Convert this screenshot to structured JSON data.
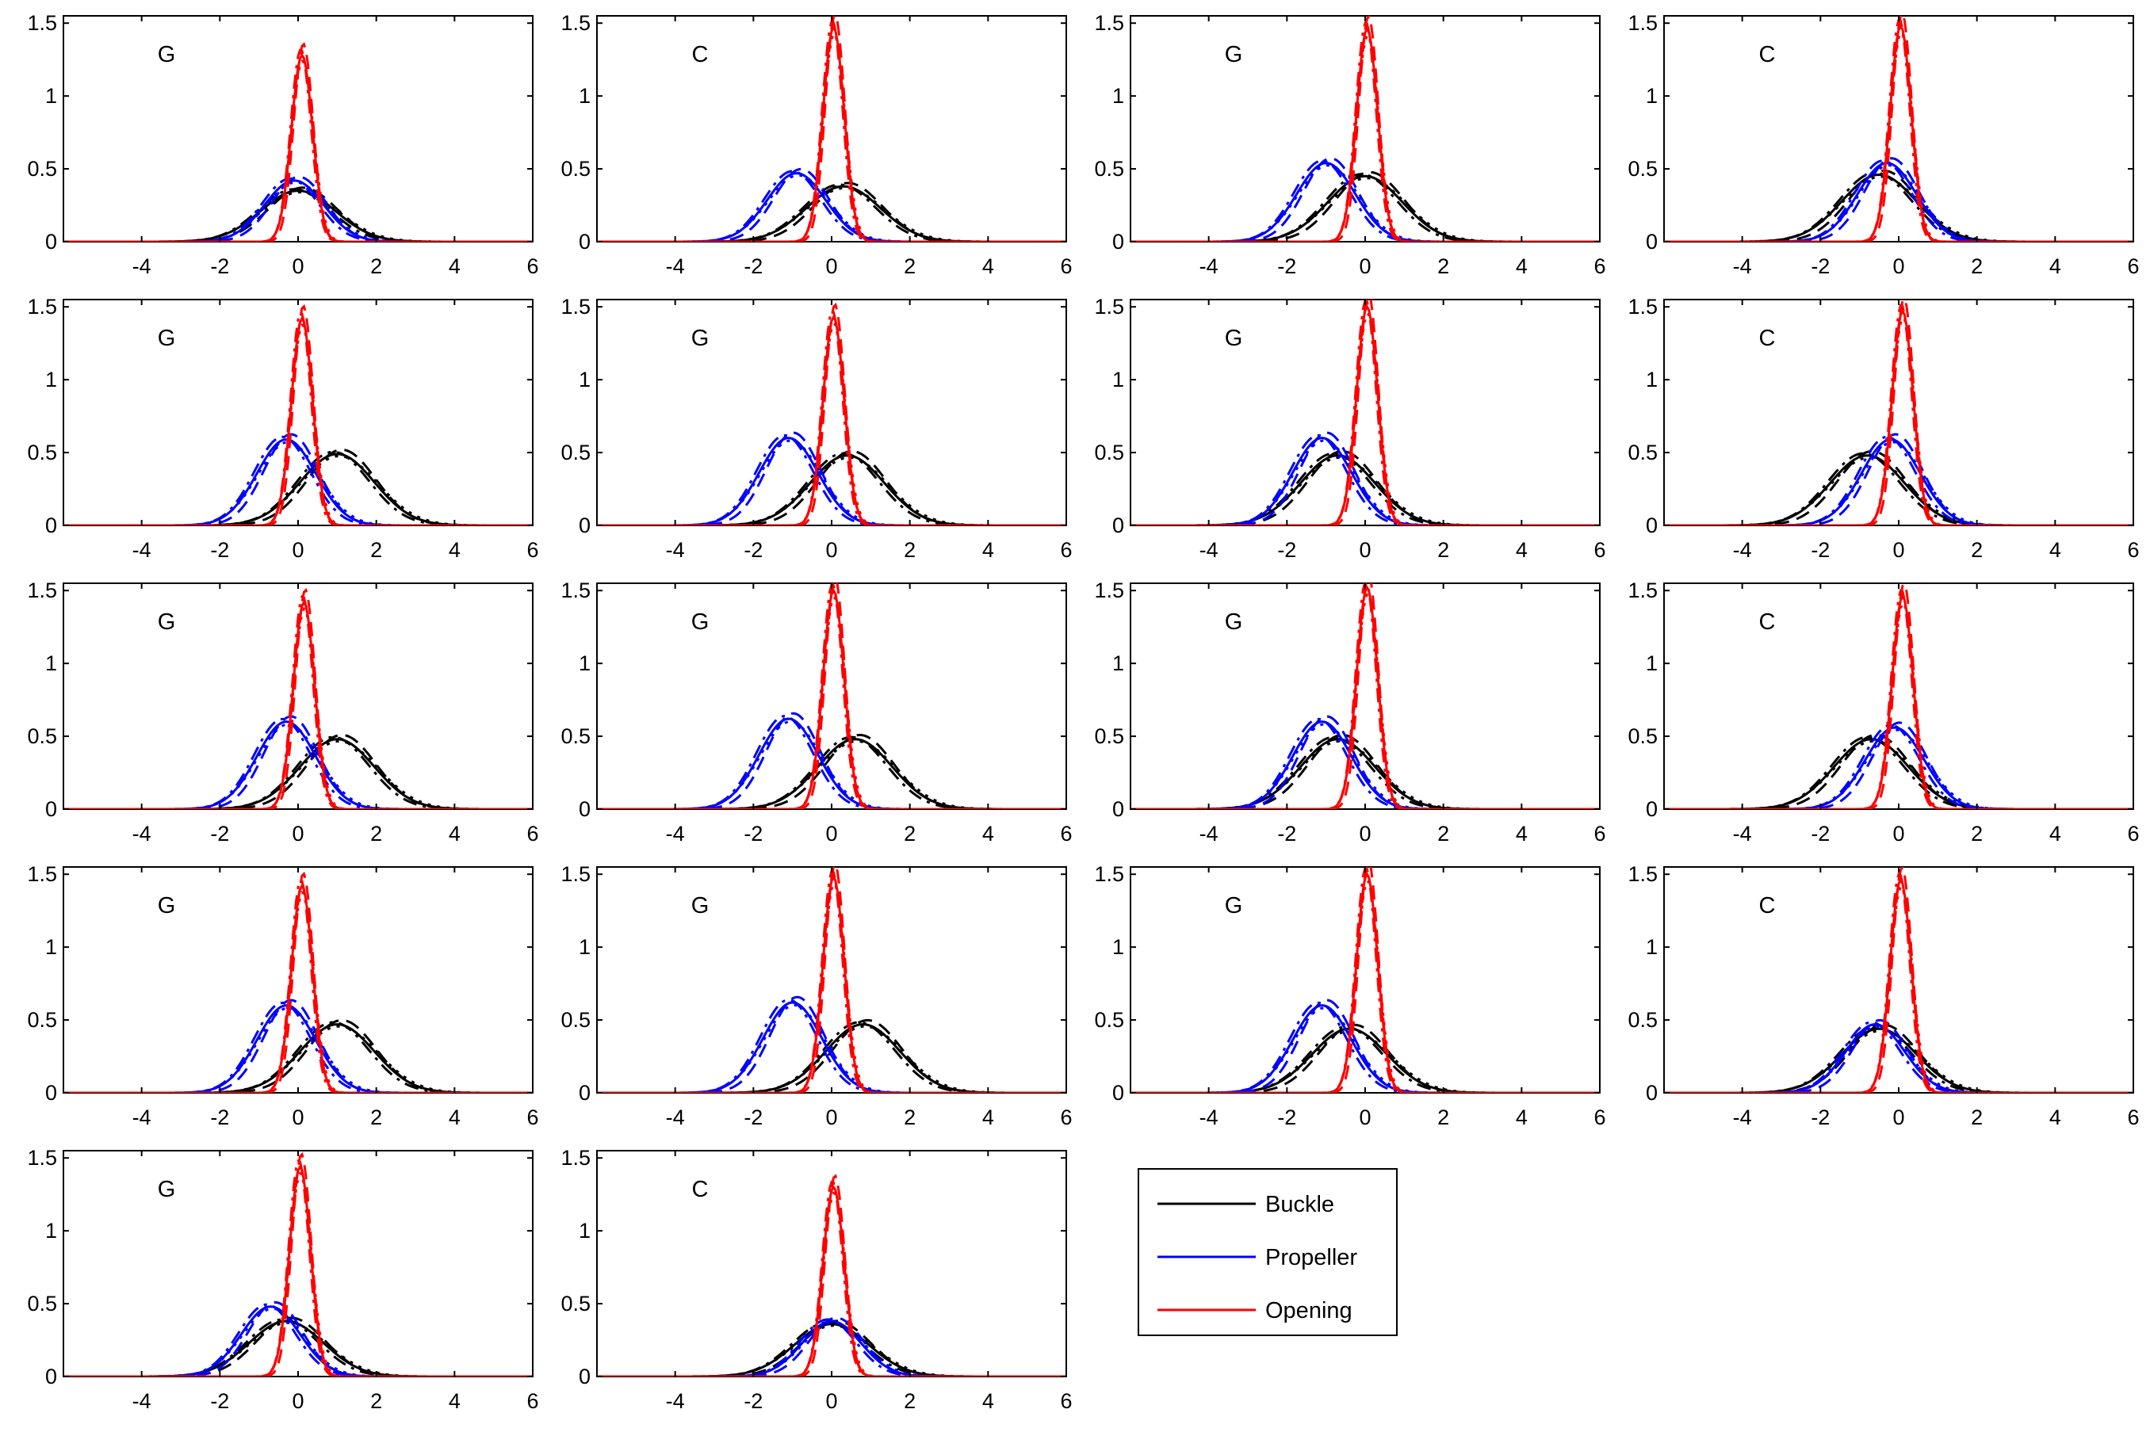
{
  "chart_data": {
    "type": "line",
    "xlim": [
      -6,
      6
    ],
    "ylim": [
      0,
      1.55
    ],
    "xticks": [
      -4,
      -2,
      0,
      2,
      4,
      6
    ],
    "yticks": [
      0,
      0.5,
      1,
      1.5
    ],
    "xticklabels": [
      "-4",
      "-2",
      "0",
      "2",
      "4",
      "6"
    ],
    "yticklabels": [
      "0",
      "0.5",
      "1",
      "1.5"
    ],
    "grid": false,
    "legend_position": "lower-right panel slot",
    "legend": [
      {
        "name": "Buckle",
        "color": "#000000"
      },
      {
        "name": "Propeller",
        "color": "#0000ff"
      },
      {
        "name": "Opening",
        "color": "#ff0000"
      }
    ],
    "colors": {
      "buckle": "#000000",
      "propeller": "#0000ff",
      "opening": "#ff0000"
    },
    "line_styles": [
      "solid",
      "dashed",
      "dashdot",
      "dotted"
    ],
    "panels": [
      {
        "label": "G",
        "buckle": {
          "mu": 0.0,
          "peak": 0.35
        },
        "propeller": {
          "mu": -0.1,
          "peak": 0.42
        },
        "opening": {
          "mu": 0.1,
          "peak": 1.28
        }
      },
      {
        "label": "C",
        "buckle": {
          "mu": 0.3,
          "peak": 0.38
        },
        "propeller": {
          "mu": -0.9,
          "peak": 0.47
        },
        "opening": {
          "mu": 0.05,
          "peak": 1.47
        }
      },
      {
        "label": "G",
        "buckle": {
          "mu": 0.0,
          "peak": 0.45
        },
        "propeller": {
          "mu": -1.0,
          "peak": 0.54
        },
        "opening": {
          "mu": 0.05,
          "peak": 1.46
        }
      },
      {
        "label": "C",
        "buckle": {
          "mu": -0.5,
          "peak": 0.46
        },
        "propeller": {
          "mu": -0.3,
          "peak": 0.54
        },
        "opening": {
          "mu": 0.05,
          "peak": 1.48
        }
      },
      {
        "label": "G",
        "buckle": {
          "mu": 1.0,
          "peak": 0.49
        },
        "propeller": {
          "mu": -0.3,
          "peak": 0.59
        },
        "opening": {
          "mu": 0.1,
          "peak": 1.42
        }
      },
      {
        "label": "G",
        "buckle": {
          "mu": 0.4,
          "peak": 0.48
        },
        "propeller": {
          "mu": -1.1,
          "peak": 0.6
        },
        "opening": {
          "mu": 0.05,
          "peak": 1.43
        }
      },
      {
        "label": "G",
        "buckle": {
          "mu": -0.7,
          "peak": 0.48
        },
        "propeller": {
          "mu": -1.1,
          "peak": 0.6
        },
        "opening": {
          "mu": 0.05,
          "peak": 1.5
        }
      },
      {
        "label": "C",
        "buckle": {
          "mu": -0.8,
          "peak": 0.48
        },
        "propeller": {
          "mu": -0.2,
          "peak": 0.59
        },
        "opening": {
          "mu": 0.1,
          "peak": 1.47
        }
      },
      {
        "label": "G",
        "buckle": {
          "mu": 1.0,
          "peak": 0.48
        },
        "propeller": {
          "mu": -0.3,
          "peak": 0.6
        },
        "opening": {
          "mu": 0.15,
          "peak": 1.42
        }
      },
      {
        "label": "G",
        "buckle": {
          "mu": 0.6,
          "peak": 0.48
        },
        "propeller": {
          "mu": -1.1,
          "peak": 0.62
        },
        "opening": {
          "mu": 0.05,
          "peak": 1.5
        }
      },
      {
        "label": "G",
        "buckle": {
          "mu": -0.7,
          "peak": 0.48
        },
        "propeller": {
          "mu": -1.1,
          "peak": 0.6
        },
        "opening": {
          "mu": 0.05,
          "peak": 1.52
        }
      },
      {
        "label": "C",
        "buckle": {
          "mu": -0.7,
          "peak": 0.48
        },
        "propeller": {
          "mu": -0.1,
          "peak": 0.56
        },
        "opening": {
          "mu": 0.1,
          "peak": 1.46
        }
      },
      {
        "label": "G",
        "buckle": {
          "mu": 1.0,
          "peak": 0.47
        },
        "propeller": {
          "mu": -0.3,
          "peak": 0.6
        },
        "opening": {
          "mu": 0.1,
          "peak": 1.42
        }
      },
      {
        "label": "G",
        "buckle": {
          "mu": 0.8,
          "peak": 0.47
        },
        "propeller": {
          "mu": -1.0,
          "peak": 0.62
        },
        "opening": {
          "mu": 0.05,
          "peak": 1.48
        }
      },
      {
        "label": "G",
        "buckle": {
          "mu": -0.4,
          "peak": 0.44
        },
        "propeller": {
          "mu": -1.1,
          "peak": 0.6
        },
        "opening": {
          "mu": 0.05,
          "peak": 1.5
        }
      },
      {
        "label": "C",
        "buckle": {
          "mu": -0.5,
          "peak": 0.44
        },
        "propeller": {
          "mu": -0.6,
          "peak": 0.47
        },
        "opening": {
          "mu": 0.05,
          "peak": 1.46
        }
      },
      {
        "label": "G",
        "buckle": {
          "mu": -0.3,
          "peak": 0.38
        },
        "propeller": {
          "mu": -0.7,
          "peak": 0.48
        },
        "opening": {
          "mu": 0.05,
          "peak": 1.44
        }
      },
      {
        "label": "C",
        "buckle": {
          "mu": 0.0,
          "peak": 0.36
        },
        "propeller": {
          "mu": 0.0,
          "peak": 0.38
        },
        "opening": {
          "mu": 0.05,
          "peak": 1.3
        }
      }
    ]
  }
}
